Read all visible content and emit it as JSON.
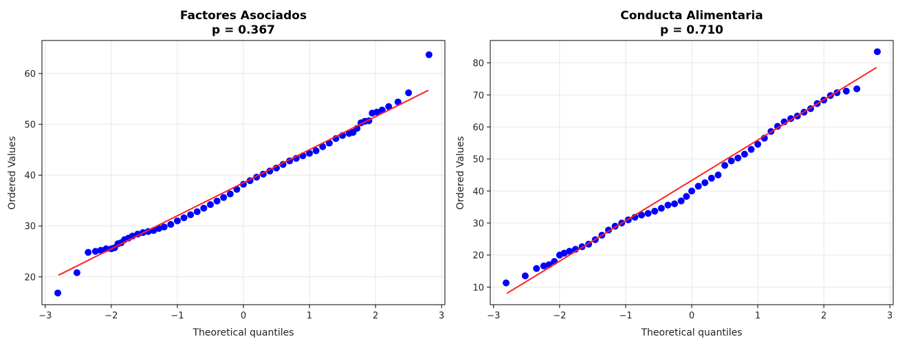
{
  "chart_data": [
    {
      "type": "scatter",
      "title": "Factores Asociados",
      "subtitle": "p = 0.367",
      "xlabel": "Theoretical quantiles",
      "ylabel": "Ordered Values",
      "xlim": [
        -3.05,
        3.05
      ],
      "ylim": [
        14.5,
        66.5
      ],
      "xticks": [
        -3,
        -2,
        -1,
        0,
        1,
        2,
        3
      ],
      "xtick_labels": [
        "−3",
        "−2",
        "−1",
        "0",
        "1",
        "2",
        "3"
      ],
      "yticks": [
        20,
        30,
        40,
        50,
        60
      ],
      "ytick_labels": [
        "20",
        "30",
        "40",
        "50",
        "60"
      ],
      "grid": true,
      "point_color": "#0000ff",
      "line_color": "#ff2020",
      "fit_line": {
        "slope": 6.5,
        "intercept": 38.5,
        "x": [
          -2.8,
          2.8
        ]
      },
      "series": [
        {
          "points": [
            [
              -2.81,
              16.8
            ],
            [
              -2.52,
              20.8
            ],
            [
              -2.35,
              24.8
            ],
            [
              -2.24,
              25.0
            ],
            [
              -2.16,
              25.2
            ],
            [
              -2.08,
              25.5
            ],
            [
              -2.0,
              25.5
            ],
            [
              -1.95,
              25.7
            ],
            [
              -1.9,
              26.5
            ],
            [
              -1.85,
              26.7
            ],
            [
              -1.8,
              27.3
            ],
            [
              -1.74,
              27.6
            ],
            [
              -1.68,
              28.0
            ],
            [
              -1.6,
              28.4
            ],
            [
              -1.52,
              28.7
            ],
            [
              -1.44,
              28.9
            ],
            [
              -1.36,
              29.1
            ],
            [
              -1.28,
              29.5
            ],
            [
              -1.2,
              29.8
            ],
            [
              -1.1,
              30.3
            ],
            [
              -1.0,
              31.0
            ],
            [
              -0.9,
              31.6
            ],
            [
              -0.8,
              32.2
            ],
            [
              -0.7,
              32.8
            ],
            [
              -0.6,
              33.5
            ],
            [
              -0.5,
              34.2
            ],
            [
              -0.4,
              34.9
            ],
            [
              -0.3,
              35.6
            ],
            [
              -0.2,
              36.3
            ],
            [
              -0.1,
              37.2
            ],
            [
              0.0,
              38.2
            ],
            [
              0.1,
              38.9
            ],
            [
              0.2,
              39.6
            ],
            [
              0.3,
              40.2
            ],
            [
              0.4,
              40.8
            ],
            [
              0.5,
              41.4
            ],
            [
              0.6,
              42.1
            ],
            [
              0.7,
              42.8
            ],
            [
              0.8,
              43.3
            ],
            [
              0.9,
              43.8
            ],
            [
              1.0,
              44.3
            ],
            [
              1.1,
              44.8
            ],
            [
              1.2,
              45.6
            ],
            [
              1.3,
              46.3
            ],
            [
              1.4,
              47.2
            ],
            [
              1.5,
              47.8
            ],
            [
              1.6,
              48.2
            ],
            [
              1.66,
              48.4
            ],
            [
              1.72,
              49.2
            ],
            [
              1.78,
              50.3
            ],
            [
              1.84,
              50.6
            ],
            [
              1.9,
              50.7
            ],
            [
              1.95,
              52.2
            ],
            [
              2.02,
              52.4
            ],
            [
              2.1,
              52.8
            ],
            [
              2.2,
              53.5
            ],
            [
              2.34,
              54.4
            ],
            [
              2.5,
              56.2
            ],
            [
              2.81,
              63.7
            ]
          ]
        }
      ]
    },
    {
      "type": "scatter",
      "title": "Conducta Alimentaria",
      "subtitle": "p = 0.710",
      "xlabel": "Theoretical quantiles",
      "ylabel": "Ordered Values",
      "xlim": [
        -3.05,
        3.05
      ],
      "ylim": [
        4.5,
        87.0
      ],
      "xticks": [
        -3,
        -2,
        -1,
        0,
        1,
        2,
        3
      ],
      "xtick_labels": [
        "−3",
        "−2",
        "−1",
        "0",
        "1",
        "2",
        "3"
      ],
      "yticks": [
        10,
        20,
        30,
        40,
        50,
        60,
        70,
        80
      ],
      "ytick_labels": [
        "10",
        "20",
        "30",
        "40",
        "50",
        "60",
        "70",
        "80"
      ],
      "grid": true,
      "point_color": "#0000ff",
      "line_color": "#ff2020",
      "fit_line": {
        "slope": 12.6,
        "intercept": 43.3,
        "x": [
          -2.8,
          2.8
        ]
      },
      "series": [
        {
          "points": [
            [
              -2.81,
              11.3
            ],
            [
              -2.52,
              13.5
            ],
            [
              -2.35,
              15.8
            ],
            [
              -2.24,
              16.6
            ],
            [
              -2.16,
              17.0
            ],
            [
              -2.08,
              18.0
            ],
            [
              -2.0,
              20.0
            ],
            [
              -1.93,
              20.6
            ],
            [
              -1.85,
              21.2
            ],
            [
              -1.76,
              21.8
            ],
            [
              -1.66,
              22.6
            ],
            [
              -1.56,
              23.4
            ],
            [
              -1.46,
              24.8
            ],
            [
              -1.36,
              26.2
            ],
            [
              -1.26,
              27.8
            ],
            [
              -1.16,
              29.0
            ],
            [
              -1.06,
              30.0
            ],
            [
              -0.96,
              31.0
            ],
            [
              -0.86,
              31.8
            ],
            [
              -0.76,
              32.5
            ],
            [
              -0.66,
              33.0
            ],
            [
              -0.56,
              33.7
            ],
            [
              -0.46,
              34.6
            ],
            [
              -0.36,
              35.6
            ],
            [
              -0.26,
              36.0
            ],
            [
              -0.16,
              36.9
            ],
            [
              -0.08,
              38.3
            ],
            [
              0.0,
              40.0
            ],
            [
              0.1,
              41.5
            ],
            [
              0.2,
              42.6
            ],
            [
              0.3,
              44.0
            ],
            [
              0.4,
              45.0
            ],
            [
              0.5,
              48.0
            ],
            [
              0.6,
              49.4
            ],
            [
              0.7,
              50.3
            ],
            [
              0.8,
              51.5
            ],
            [
              0.9,
              53.0
            ],
            [
              1.0,
              54.6
            ],
            [
              1.1,
              56.5
            ],
            [
              1.2,
              58.6
            ],
            [
              1.3,
              60.2
            ],
            [
              1.4,
              61.6
            ],
            [
              1.5,
              62.6
            ],
            [
              1.6,
              63.4
            ],
            [
              1.7,
              64.6
            ],
            [
              1.8,
              65.7
            ],
            [
              1.9,
              67.3
            ],
            [
              2.0,
              68.4
            ],
            [
              2.1,
              69.8
            ],
            [
              2.2,
              70.7
            ],
            [
              2.34,
              71.2
            ],
            [
              2.5,
              71.9
            ],
            [
              2.81,
              83.5
            ]
          ]
        }
      ]
    }
  ]
}
